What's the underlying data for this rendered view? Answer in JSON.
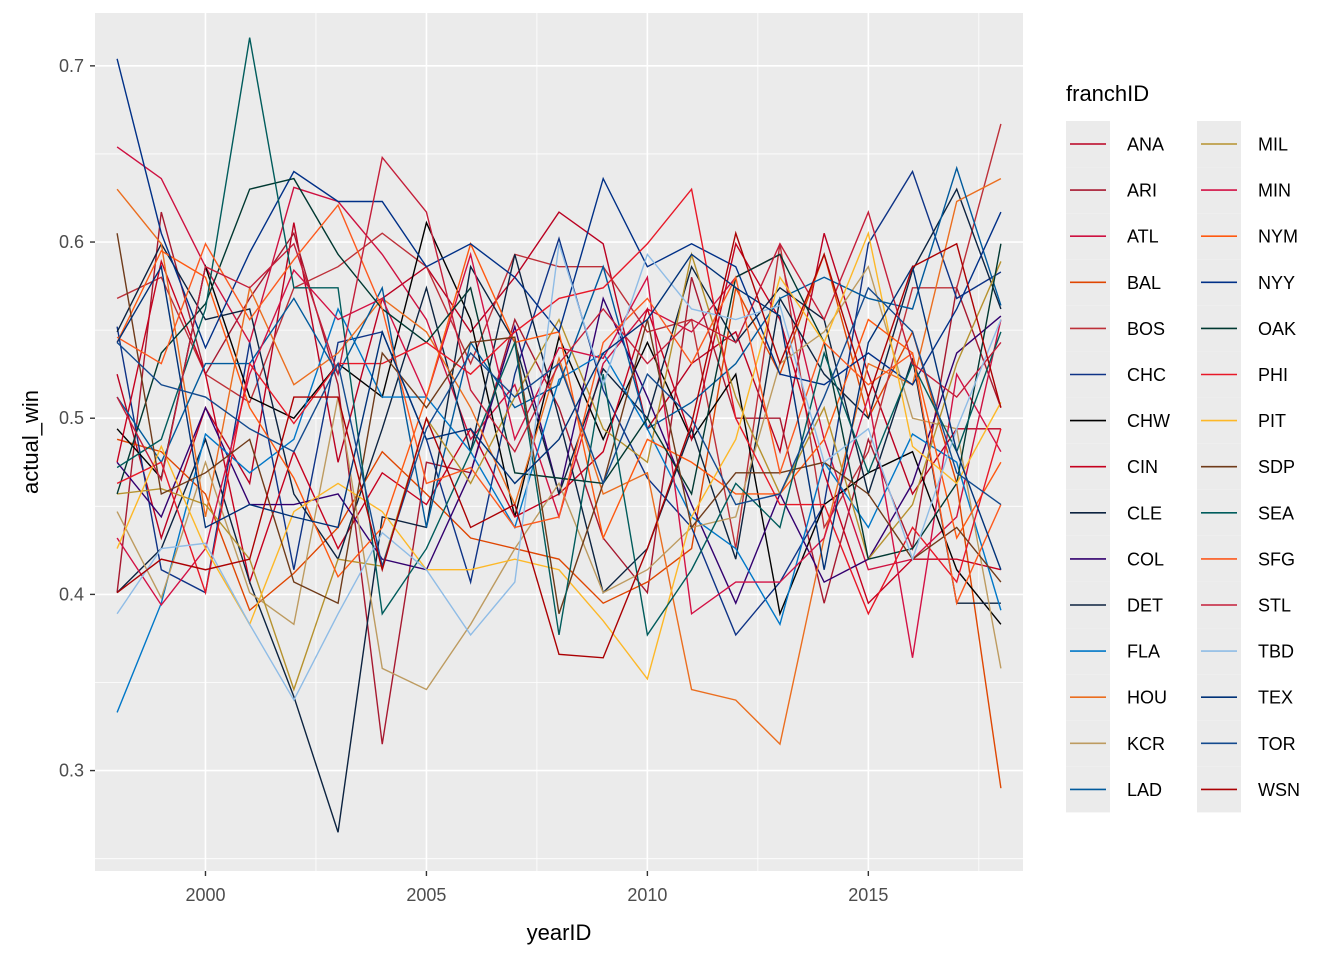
{
  "chart_data": {
    "type": "line",
    "xlabel": "yearID",
    "ylabel": "actual_win",
    "xlim": [
      1997.5,
      2018.5
    ],
    "ylim": [
      0.243,
      0.73
    ],
    "x_ticks": [
      2000,
      2005,
      2010,
      2015
    ],
    "y_ticks": [
      0.3,
      0.4,
      0.5,
      0.6,
      0.7
    ],
    "x_tick_labels": [
      "2000",
      "2005",
      "2010",
      "2015"
    ],
    "y_tick_labels": [
      "0.3",
      "0.4",
      "0.5",
      "0.6",
      "0.7"
    ],
    "legend_title": "franchID",
    "legend_position": "right",
    "grid": true,
    "x": [
      1998,
      1999,
      2000,
      2001,
      2002,
      2003,
      2004,
      2005,
      2006,
      2007,
      2008,
      2009,
      2010,
      2011,
      2012,
      2013,
      2014,
      2015,
      2016,
      2017,
      2018
    ],
    "series": [
      {
        "name": "ANA",
        "color": "#BA0021",
        "values": [
          0.525,
          0.432,
          0.506,
          0.463,
          0.611,
          0.475,
          0.568,
          0.586,
          0.549,
          0.58,
          0.617,
          0.599,
          0.494,
          0.531,
          0.549,
          0.481,
          0.605,
          0.525,
          0.457,
          0.494,
          0.494
        ]
      },
      {
        "name": "ARI",
        "color": "#A71930",
        "values": [
          0.401,
          0.617,
          0.525,
          0.568,
          0.605,
          0.519,
          0.315,
          0.475,
          0.469,
          0.556,
          0.506,
          0.432,
          0.401,
          0.58,
          0.5,
          0.5,
          0.395,
          0.488,
          0.426,
          0.574,
          0.506
        ]
      },
      {
        "name": "ATL",
        "color": "#CE1141",
        "values": [
          0.654,
          0.636,
          0.586,
          0.543,
          0.631,
          0.623,
          0.593,
          0.556,
          0.488,
          0.519,
          0.444,
          0.531,
          0.562,
          0.549,
          0.58,
          0.593,
          0.488,
          0.414,
          0.42,
          0.444,
          0.556
        ]
      },
      {
        "name": "BAL",
        "color": "#DF4601",
        "values": [
          0.488,
          0.481,
          0.457,
          0.391,
          0.412,
          0.438,
          0.481,
          0.457,
          0.432,
          0.426,
          0.42,
          0.395,
          0.407,
          0.426,
          0.574,
          0.525,
          0.593,
          0.5,
          0.549,
          0.463,
          0.29
        ]
      },
      {
        "name": "BOS",
        "color": "#BD3039",
        "values": [
          0.568,
          0.58,
          0.525,
          0.509,
          0.574,
          0.586,
          0.605,
          0.586,
          0.531,
          0.593,
          0.586,
          0.586,
          0.549,
          0.556,
          0.426,
          0.599,
          0.438,
          0.481,
          0.574,
          0.574,
          0.667
        ]
      },
      {
        "name": "CHC",
        "color": "#0E3386",
        "values": [
          0.552,
          0.414,
          0.401,
          0.543,
          0.414,
          0.543,
          0.549,
          0.488,
          0.407,
          0.525,
          0.602,
          0.516,
          0.466,
          0.438,
          0.377,
          0.407,
          0.451,
          0.599,
          0.64,
          0.568,
          0.583
        ]
      },
      {
        "name": "CHW",
        "color": "#000000",
        "values": [
          0.494,
          0.466,
          0.586,
          0.512,
          0.5,
          0.531,
          0.512,
          0.611,
          0.556,
          0.444,
          0.546,
          0.488,
          0.543,
          0.488,
          0.525,
          0.389,
          0.451,
          0.469,
          0.481,
          0.414,
          0.383
        ]
      },
      {
        "name": "CIN",
        "color": "#C6011F",
        "values": [
          0.475,
          0.589,
          0.525,
          0.407,
          0.481,
          0.426,
          0.469,
          0.451,
          0.494,
          0.444,
          0.457,
          0.481,
          0.562,
          0.488,
          0.599,
          0.556,
          0.469,
          0.395,
          0.42,
          0.42,
          0.414
        ]
      },
      {
        "name": "CLE",
        "color": "#0C2340",
        "values": [
          0.549,
          0.599,
          0.556,
          0.562,
          0.457,
          0.42,
          0.494,
          0.574,
          0.481,
          0.593,
          0.5,
          0.401,
          0.426,
          0.494,
          0.42,
          0.568,
          0.525,
          0.5,
          0.584,
          0.63,
          0.562
        ]
      },
      {
        "name": "COL",
        "color": "#33006F",
        "values": [
          0.475,
          0.444,
          0.506,
          0.451,
          0.451,
          0.457,
          0.42,
          0.414,
          0.469,
          0.552,
          0.457,
          0.568,
          0.512,
          0.451,
          0.395,
          0.457,
          0.407,
          0.42,
          0.463,
          0.537,
          0.558
        ]
      },
      {
        "name": "DET",
        "color": "#0C2340",
        "values": [
          0.401,
          0.426,
          0.488,
          0.407,
          0.342,
          0.265,
          0.444,
          0.438,
          0.586,
          0.543,
          0.457,
          0.528,
          0.5,
          0.586,
          0.543,
          0.574,
          0.556,
          0.457,
          0.534,
          0.395,
          0.395
        ]
      },
      {
        "name": "FLA",
        "color": "#0077C8",
        "values": [
          0.333,
          0.395,
          0.491,
          0.469,
          0.488,
          0.562,
          0.512,
          0.512,
          0.481,
          0.438,
          0.522,
          0.537,
          0.494,
          0.444,
          0.426,
          0.383,
          0.475,
          0.438,
          0.491,
          0.475,
          0.391
        ]
      },
      {
        "name": "HOU",
        "color": "#EB6E1F",
        "values": [
          0.63,
          0.599,
          0.444,
          0.574,
          0.519,
          0.537,
          0.568,
          0.549,
          0.506,
          0.451,
          0.534,
          0.457,
          0.469,
          0.346,
          0.34,
          0.315,
          0.432,
          0.531,
          0.519,
          0.623,
          0.636
        ]
      },
      {
        "name": "KCR",
        "color": "#BD9B60",
        "values": [
          0.447,
          0.398,
          0.475,
          0.401,
          0.383,
          0.512,
          0.358,
          0.346,
          0.383,
          0.426,
          0.463,
          0.401,
          0.414,
          0.438,
          0.444,
          0.531,
          0.549,
          0.586,
          0.5,
          0.494,
          0.358
        ]
      },
      {
        "name": "LAD",
        "color": "#005A9C",
        "values": [
          0.512,
          0.475,
          0.531,
          0.531,
          0.568,
          0.525,
          0.574,
          0.438,
          0.543,
          0.506,
          0.519,
          0.586,
          0.494,
          0.509,
          0.531,
          0.568,
          0.58,
          0.568,
          0.562,
          0.642,
          0.564
        ]
      },
      {
        "name": "MIL",
        "color": "#B6922E",
        "values": [
          0.457,
          0.46,
          0.451,
          0.42,
          0.346,
          0.42,
          0.416,
          0.5,
          0.463,
          0.512,
          0.556,
          0.494,
          0.475,
          0.593,
          0.512,
          0.457,
          0.506,
          0.42,
          0.451,
          0.531,
          0.589
        ]
      },
      {
        "name": "MIN",
        "color": "#D31145",
        "values": [
          0.432,
          0.394,
          0.426,
          0.525,
          0.584,
          0.556,
          0.568,
          0.512,
          0.593,
          0.488,
          0.54,
          0.534,
          0.58,
          0.389,
          0.407,
          0.407,
          0.432,
          0.512,
          0.364,
          0.525,
          0.481
        ]
      },
      {
        "name": "NYM",
        "color": "#FF5910",
        "values": [
          0.543,
          0.595,
          0.58,
          0.506,
          0.466,
          0.41,
          0.438,
          0.512,
          0.599,
          0.543,
          0.549,
          0.432,
          0.488,
          0.475,
          0.457,
          0.457,
          0.488,
          0.556,
          0.537,
          0.432,
          0.475
        ]
      },
      {
        "name": "NYY",
        "color": "#003087",
        "values": [
          0.704,
          0.605,
          0.54,
          0.594,
          0.64,
          0.623,
          0.623,
          0.586,
          0.599,
          0.58,
          0.549,
          0.636,
          0.586,
          0.599,
          0.586,
          0.525,
          0.519,
          0.537,
          0.519,
          0.562,
          0.617
        ]
      },
      {
        "name": "OAK",
        "color": "#003831",
        "values": [
          0.457,
          0.537,
          0.565,
          0.63,
          0.636,
          0.593,
          0.562,
          0.543,
          0.574,
          0.469,
          0.466,
          0.463,
          0.5,
          0.457,
          0.58,
          0.593,
          0.543,
          0.42,
          0.426,
          0.463,
          0.599
        ]
      },
      {
        "name": "PHI",
        "color": "#E81828",
        "values": [
          0.463,
          0.475,
          0.401,
          0.531,
          0.497,
          0.531,
          0.531,
          0.543,
          0.525,
          0.549,
          0.568,
          0.574,
          0.599,
          0.63,
          0.5,
          0.451,
          0.451,
          0.389,
          0.438,
          0.407,
          0.494
        ]
      },
      {
        "name": "PIT",
        "color": "#FDB827",
        "values": [
          0.426,
          0.484,
          0.426,
          0.383,
          0.447,
          0.463,
          0.447,
          0.414,
          0.414,
          0.42,
          0.414,
          0.385,
          0.352,
          0.444,
          0.488,
          0.58,
          0.543,
          0.605,
          0.484,
          0.463,
          0.509
        ]
      },
      {
        "name": "SDP",
        "color": "#6F3B1A",
        "values": [
          0.605,
          0.457,
          0.469,
          0.488,
          0.407,
          0.395,
          0.537,
          0.506,
          0.543,
          0.546,
          0.389,
          0.463,
          0.556,
          0.438,
          0.469,
          0.469,
          0.475,
          0.457,
          0.42,
          0.438,
          0.407
        ]
      },
      {
        "name": "SEA",
        "color": "#005C5C",
        "values": [
          0.472,
          0.488,
          0.562,
          0.716,
          0.574,
          0.574,
          0.389,
          0.426,
          0.481,
          0.543,
          0.377,
          0.525,
          0.377,
          0.414,
          0.463,
          0.438,
          0.537,
          0.469,
          0.531,
          0.481,
          0.549
        ]
      },
      {
        "name": "SFG",
        "color": "#FD5A1E",
        "values": [
          0.546,
          0.531,
          0.599,
          0.556,
          0.59,
          0.621,
          0.562,
          0.463,
          0.472,
          0.438,
          0.444,
          0.543,
          0.568,
          0.531,
          0.58,
          0.469,
          0.543,
          0.519,
          0.537,
          0.395,
          0.451
        ]
      },
      {
        "name": "STL",
        "color": "#C41E3A",
        "values": [
          0.512,
          0.465,
          0.586,
          0.574,
          0.599,
          0.525,
          0.648,
          0.617,
          0.516,
          0.481,
          0.531,
          0.562,
          0.531,
          0.556,
          0.543,
          0.599,
          0.556,
          0.617,
          0.531,
          0.512,
          0.543
        ]
      },
      {
        "name": "TBD",
        "color": "#8FBCE6",
        "values": [
          0.389,
          0.426,
          0.429,
          0.383,
          0.34,
          0.389,
          0.435,
          0.414,
          0.377,
          0.407,
          0.599,
          0.519,
          0.593,
          0.562,
          0.556,
          0.564,
          0.475,
          0.494,
          0.42,
          0.494,
          0.556
        ]
      },
      {
        "name": "TEX",
        "color": "#003278",
        "values": [
          0.543,
          0.586,
          0.438,
          0.451,
          0.444,
          0.438,
          0.549,
          0.488,
          0.494,
          0.463,
          0.488,
          0.537,
          0.556,
          0.593,
          0.574,
          0.558,
          0.414,
          0.543,
          0.586,
          0.481,
          0.414
        ]
      },
      {
        "name": "TOR",
        "color": "#134A8E",
        "values": [
          0.543,
          0.519,
          0.512,
          0.494,
          0.481,
          0.531,
          0.416,
          0.494,
          0.537,
          0.512,
          0.531,
          0.463,
          0.525,
          0.5,
          0.451,
          0.457,
          0.512,
          0.574,
          0.549,
          0.469,
          0.451
        ]
      },
      {
        "name": "WSN",
        "color": "#AB0003",
        "values": [
          0.401,
          0.42,
          0.414,
          0.42,
          0.512,
          0.512,
          0.414,
          0.5,
          0.438,
          0.451,
          0.366,
          0.364,
          0.426,
          0.497,
          0.605,
          0.531,
          0.593,
          0.512,
          0.586,
          0.599,
          0.506
        ]
      }
    ]
  }
}
